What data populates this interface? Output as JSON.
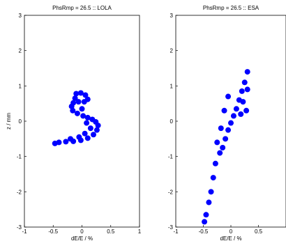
{
  "chart_data": [
    {
      "type": "scatter",
      "title": "PhsRmp = 26.5 :: LOLA",
      "xlabel": "dE/E / %",
      "ylabel": "z / mm",
      "xlim": [
        -1,
        1
      ],
      "ylim": [
        -3,
        3
      ],
      "xticks": [
        "-1",
        "-0.5",
        "0",
        "0.5",
        "1"
      ],
      "yticks": [
        "3",
        "2",
        "1",
        "0",
        "-1",
        "-2",
        "-3"
      ],
      "grid": false,
      "marker_color": "#0000ff",
      "series": [
        {
          "values": [
            [
              -0.1,
              0.78
            ],
            [
              -0.02,
              0.8
            ],
            [
              0.06,
              0.74
            ],
            [
              0.1,
              0.62
            ],
            [
              0.04,
              0.55
            ],
            [
              -0.06,
              0.55
            ],
            [
              -0.15,
              0.52
            ],
            [
              -0.18,
              0.42
            ],
            [
              -0.16,
              0.3
            ],
            [
              -0.08,
              0.22
            ],
            [
              0.02,
              0.15
            ],
            [
              0.1,
              0.1
            ],
            [
              0.18,
              0.05
            ],
            [
              0.24,
              -0.02
            ],
            [
              0.28,
              -0.12
            ],
            [
              0.26,
              -0.25
            ],
            [
              0.2,
              -0.38
            ],
            [
              0.1,
              -0.48
            ],
            [
              -0.02,
              -0.54
            ],
            [
              -0.15,
              -0.57
            ],
            [
              -0.28,
              -0.58
            ],
            [
              -0.4,
              -0.6
            ],
            [
              -0.47,
              -0.63
            ],
            [
              0.15,
              -0.2
            ],
            [
              0.05,
              -0.35
            ],
            [
              -0.05,
              -0.45
            ],
            [
              -0.2,
              -0.5
            ],
            [
              0.0,
              0.35
            ],
            [
              -0.12,
              0.65
            ],
            [
              0.08,
              -0.05
            ]
          ]
        }
      ]
    },
    {
      "type": "scatter",
      "title": "PhsRmp = 26.5 :: ESA",
      "xlabel": "dE/E / %",
      "ylabel": "",
      "xlim": [
        -1,
        1
      ],
      "ylim": [
        -3,
        3
      ],
      "xticks": [
        "-1",
        "-0.5",
        "0",
        "0.5"
      ],
      "yticks": [
        "3",
        "2",
        "1",
        "0",
        "-1",
        "-2",
        "-3"
      ],
      "grid": false,
      "marker_color": "#0000ff",
      "series": [
        {
          "values": [
            [
              0.3,
              1.4
            ],
            [
              0.25,
              1.1
            ],
            [
              0.2,
              0.85
            ],
            [
              0.15,
              0.6
            ],
            [
              0.1,
              0.35
            ],
            [
              0.05,
              0.15
            ],
            [
              0.0,
              -0.05
            ],
            [
              -0.05,
              -0.25
            ],
            [
              -0.1,
              -0.5
            ],
            [
              -0.15,
              -0.75
            ],
            [
              -0.2,
              -0.9
            ],
            [
              -0.12,
              0.3
            ],
            [
              0.18,
              0.2
            ],
            [
              0.22,
              0.55
            ],
            [
              -0.05,
              0.7
            ],
            [
              0.3,
              0.9
            ],
            [
              -0.25,
              -0.6
            ],
            [
              -0.28,
              -1.2
            ],
            [
              -0.32,
              -1.6
            ],
            [
              -0.36,
              -2.0
            ],
            [
              -0.4,
              -2.3
            ],
            [
              -0.45,
              -2.65
            ],
            [
              -0.48,
              -2.85
            ],
            [
              0.28,
              0.3
            ],
            [
              -0.18,
              -0.2
            ]
          ]
        }
      ]
    }
  ]
}
